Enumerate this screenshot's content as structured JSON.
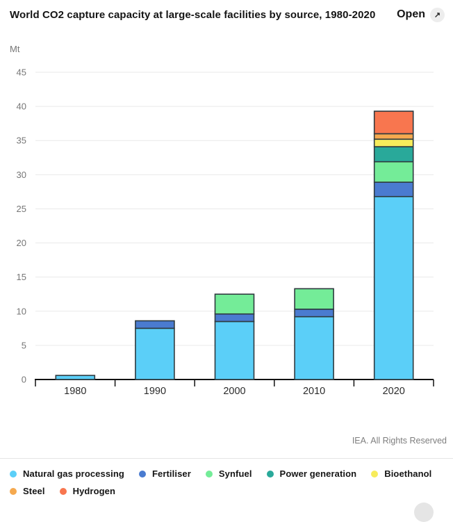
{
  "header": {
    "open_label": "Open",
    "open_icon": "↗"
  },
  "footer": {
    "credit": "IEA. All Rights Reserved"
  },
  "chart_data": {
    "type": "bar",
    "stacked": true,
    "title": "World CO2 capture capacity at large-scale facilities by source, 1980-2020",
    "unit": "Mt",
    "xlabel": "",
    "ylabel": "Mt",
    "categories": [
      "1980",
      "1990",
      "2000",
      "2010",
      "2020"
    ],
    "series": [
      {
        "name": "Natural gas processing",
        "color": "#5bcff8",
        "values": [
          0.6,
          7.5,
          8.5,
          9.2,
          26.8
        ]
      },
      {
        "name": "Fertiliser",
        "color": "#4a7bd0",
        "values": [
          0,
          1.1,
          1.1,
          1.1,
          2.1
        ]
      },
      {
        "name": "Synfuel",
        "color": "#74ec98",
        "values": [
          0,
          0,
          2.9,
          3.0,
          3.0
        ]
      },
      {
        "name": "Power generation",
        "color": "#29a99a",
        "values": [
          0,
          0,
          0,
          0,
          2.2
        ]
      },
      {
        "name": "Bioethanol",
        "color": "#f7ec5b",
        "values": [
          0,
          0,
          0,
          0,
          1.1
        ]
      },
      {
        "name": "Steel",
        "color": "#f5a94f",
        "values": [
          0,
          0,
          0,
          0,
          0.8
        ]
      },
      {
        "name": "Hydrogen",
        "color": "#f8764f",
        "values": [
          0,
          0,
          0,
          0,
          3.3
        ]
      }
    ],
    "ylim": [
      0,
      45
    ],
    "ytick_step": 5,
    "grid": true,
    "legend_position": "bottom",
    "style": {
      "bar_border_color": "#2e3a3f",
      "gridline_color": "#e9e9e9",
      "axis_color": "#111111",
      "ytick_label_color": "#767676",
      "xtick_label_color": "#2b2b2b"
    }
  }
}
